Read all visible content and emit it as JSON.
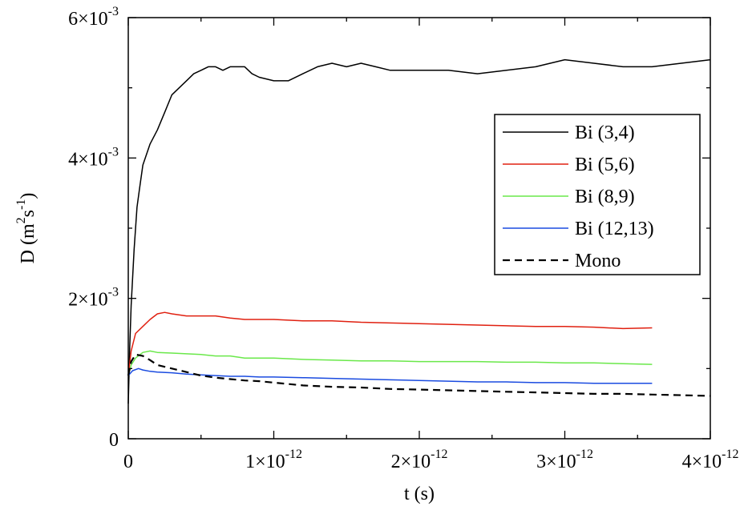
{
  "chart_data": {
    "type": "line",
    "title": "",
    "xlabel": "t (s)",
    "ylabel": "D (m2s-1)",
    "ylabel_parts": {
      "main": "D (m",
      "sup1": "2",
      "mid": "s",
      "sup2": "-1",
      "end": ")"
    },
    "xlim": [
      0,
      4e-12
    ],
    "ylim": [
      0,
      0.006
    ],
    "grid": false,
    "legend_position": "right",
    "x_ticks": [
      {
        "value": 0,
        "label": "0",
        "mant": "",
        "exp": ""
      },
      {
        "value": 1e-12,
        "label": "1×10-12",
        "mant": "1×10",
        "exp": "-12"
      },
      {
        "value": 2e-12,
        "label": "2×10-12",
        "mant": "2×10",
        "exp": "-12"
      },
      {
        "value": 3e-12,
        "label": "3×10-12",
        "mant": "3×10",
        "exp": "-12"
      },
      {
        "value": 4e-12,
        "label": "4×10-12",
        "mant": "4×10",
        "exp": "-12"
      }
    ],
    "y_ticks": [
      {
        "value": 0,
        "label": "0",
        "mant": "",
        "exp": ""
      },
      {
        "value": 0.002,
        "label": "2×10-3",
        "mant": "2×10",
        "exp": "-3"
      },
      {
        "value": 0.004,
        "label": "4×10-3",
        "mant": "4×10",
        "exp": "-3"
      },
      {
        "value": 0.006,
        "label": "6×10-3",
        "mant": "6×10",
        "exp": "-3"
      }
    ],
    "series": [
      {
        "name": "Bi (3,4)",
        "color": "#000000",
        "dash": "solid",
        "points": [
          [
            0,
            0.0005
          ],
          [
            1e-14,
            0.0013
          ],
          [
            2e-14,
            0.0019
          ],
          [
            4e-14,
            0.0027
          ],
          [
            6e-14,
            0.0033
          ],
          [
            8e-14,
            0.0036
          ],
          [
            1e-13,
            0.0039
          ],
          [
            1.5e-13,
            0.0042
          ],
          [
            2e-13,
            0.0044
          ],
          [
            2.5e-13,
            0.00465
          ],
          [
            3e-13,
            0.0049
          ],
          [
            3.5e-13,
            0.005
          ],
          [
            4e-13,
            0.0051
          ],
          [
            4.5e-13,
            0.0052
          ],
          [
            5e-13,
            0.00525
          ],
          [
            5.5e-13,
            0.0053
          ],
          [
            6e-13,
            0.0053
          ],
          [
            6.5e-13,
            0.00525
          ],
          [
            7e-13,
            0.0053
          ],
          [
            7.5e-13,
            0.0053
          ],
          [
            8e-13,
            0.0053
          ],
          [
            8.5e-13,
            0.0052
          ],
          [
            9e-13,
            0.00515
          ],
          [
            1e-12,
            0.0051
          ],
          [
            1.1e-12,
            0.0051
          ],
          [
            1.2e-12,
            0.0052
          ],
          [
            1.3e-12,
            0.0053
          ],
          [
            1.4e-12,
            0.00535
          ],
          [
            1.5e-12,
            0.0053
          ],
          [
            1.6e-12,
            0.00535
          ],
          [
            1.7e-12,
            0.0053
          ],
          [
            1.8e-12,
            0.00525
          ],
          [
            1.9e-12,
            0.00525
          ],
          [
            2e-12,
            0.00525
          ],
          [
            2.2e-12,
            0.00525
          ],
          [
            2.4e-12,
            0.0052
          ],
          [
            2.6e-12,
            0.00525
          ],
          [
            2.8e-12,
            0.0053
          ],
          [
            3e-12,
            0.0054
          ],
          [
            3.2e-12,
            0.00535
          ],
          [
            3.4e-12,
            0.0053
          ],
          [
            3.6e-12,
            0.0053
          ],
          [
            3.8e-12,
            0.00535
          ],
          [
            4e-12,
            0.0054
          ]
        ]
      },
      {
        "name": "Bi (5,6)",
        "color": "#e02010",
        "dash": "solid",
        "points": [
          [
            0,
            0.0009
          ],
          [
            2e-14,
            0.00125
          ],
          [
            5e-14,
            0.0015
          ],
          [
            1e-13,
            0.0016
          ],
          [
            1.5e-13,
            0.0017
          ],
          [
            2e-13,
            0.00178
          ],
          [
            2.5e-13,
            0.0018
          ],
          [
            3e-13,
            0.00178
          ],
          [
            4e-13,
            0.00175
          ],
          [
            5e-13,
            0.00175
          ],
          [
            6e-13,
            0.00175
          ],
          [
            7e-13,
            0.00172
          ],
          [
            8e-13,
            0.0017
          ],
          [
            9e-13,
            0.0017
          ],
          [
            1e-12,
            0.0017
          ],
          [
            1.2e-12,
            0.00168
          ],
          [
            1.4e-12,
            0.00168
          ],
          [
            1.6e-12,
            0.00166
          ],
          [
            1.8e-12,
            0.00165
          ],
          [
            2e-12,
            0.00164
          ],
          [
            2.2e-12,
            0.00163
          ],
          [
            2.4e-12,
            0.00162
          ],
          [
            2.6e-12,
            0.00161
          ],
          [
            2.8e-12,
            0.0016
          ],
          [
            3e-12,
            0.0016
          ],
          [
            3.2e-12,
            0.00159
          ],
          [
            3.4e-12,
            0.00157
          ],
          [
            3.6e-12,
            0.00158
          ]
        ]
      },
      {
        "name": "Bi (8,9)",
        "color": "#6ae84a",
        "dash": "solid",
        "points": [
          [
            0,
            0.0009
          ],
          [
            2e-14,
            0.00105
          ],
          [
            5e-14,
            0.00115
          ],
          [
            1e-13,
            0.00123
          ],
          [
            1.5e-13,
            0.00125
          ],
          [
            2e-13,
            0.00123
          ],
          [
            3e-13,
            0.00122
          ],
          [
            4e-13,
            0.00121
          ],
          [
            5e-13,
            0.0012
          ],
          [
            6e-13,
            0.00118
          ],
          [
            7e-13,
            0.00118
          ],
          [
            8e-13,
            0.00115
          ],
          [
            9e-13,
            0.00115
          ],
          [
            1e-12,
            0.00115
          ],
          [
            1.2e-12,
            0.00113
          ],
          [
            1.4e-12,
            0.00112
          ],
          [
            1.6e-12,
            0.00111
          ],
          [
            1.8e-12,
            0.00111
          ],
          [
            2e-12,
            0.0011
          ],
          [
            2.2e-12,
            0.0011
          ],
          [
            2.4e-12,
            0.0011
          ],
          [
            2.6e-12,
            0.00109
          ],
          [
            2.8e-12,
            0.00109
          ],
          [
            3e-12,
            0.00108
          ],
          [
            3.2e-12,
            0.00108
          ],
          [
            3.4e-12,
            0.00107
          ],
          [
            3.6e-12,
            0.00106
          ]
        ]
      },
      {
        "name": "Bi (12,13)",
        "color": "#1a4be0",
        "dash": "solid",
        "points": [
          [
            0,
            0.0009
          ],
          [
            3e-14,
            0.00097
          ],
          [
            7e-14,
            0.001
          ],
          [
            1e-13,
            0.00098
          ],
          [
            1.5e-13,
            0.00096
          ],
          [
            2e-13,
            0.00095
          ],
          [
            3e-13,
            0.00094
          ],
          [
            4e-13,
            0.00092
          ],
          [
            5e-13,
            0.00091
          ],
          [
            6e-13,
            0.0009
          ],
          [
            7e-13,
            0.00089
          ],
          [
            8e-13,
            0.00089
          ],
          [
            9e-13,
            0.00088
          ],
          [
            1e-12,
            0.00088
          ],
          [
            1.2e-12,
            0.00087
          ],
          [
            1.4e-12,
            0.00086
          ],
          [
            1.6e-12,
            0.00085
          ],
          [
            1.8e-12,
            0.00084
          ],
          [
            2e-12,
            0.00083
          ],
          [
            2.2e-12,
            0.00082
          ],
          [
            2.4e-12,
            0.00081
          ],
          [
            2.6e-12,
            0.00081
          ],
          [
            2.8e-12,
            0.0008
          ],
          [
            3e-12,
            0.0008
          ],
          [
            3.2e-12,
            0.00079
          ],
          [
            3.4e-12,
            0.00079
          ],
          [
            3.6e-12,
            0.00079
          ]
        ]
      },
      {
        "name": "Mono",
        "color": "#000000",
        "dash": "dashed",
        "points": [
          [
            0,
            0.0009
          ],
          [
            2e-14,
            0.0011
          ],
          [
            5e-14,
            0.0012
          ],
          [
            1e-13,
            0.00118
          ],
          [
            1.5e-13,
            0.00112
          ],
          [
            2e-13,
            0.00105
          ],
          [
            3e-13,
            0.001
          ],
          [
            4e-13,
            0.00095
          ],
          [
            5e-13,
            0.0009
          ],
          [
            6e-13,
            0.00087
          ],
          [
            7e-13,
            0.00085
          ],
          [
            8e-13,
            0.00083
          ],
          [
            9e-13,
            0.00082
          ],
          [
            1e-12,
            0.0008
          ],
          [
            1.2e-12,
            0.00076
          ],
          [
            1.4e-12,
            0.00074
          ],
          [
            1.6e-12,
            0.00073
          ],
          [
            1.8e-12,
            0.00071
          ],
          [
            2e-12,
            0.0007
          ],
          [
            2.2e-12,
            0.00069
          ],
          [
            2.4e-12,
            0.00068
          ],
          [
            2.6e-12,
            0.00067
          ],
          [
            2.8e-12,
            0.00066
          ],
          [
            3e-12,
            0.00065
          ],
          [
            3.2e-12,
            0.00064
          ],
          [
            3.4e-12,
            0.00064
          ],
          [
            3.6e-12,
            0.00063
          ],
          [
            3.8e-12,
            0.00062
          ],
          [
            4e-12,
            0.00061
          ]
        ]
      }
    ]
  }
}
